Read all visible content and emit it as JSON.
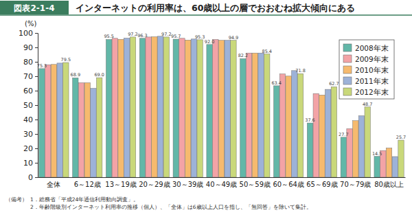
{
  "chart_data": {
    "type": "bar",
    "figure_label": "図表2-1-4",
    "title": "インターネットの利用率は、60歳以上の層でおおむね拡大傾向にある",
    "y_label": "(%)",
    "categories": [
      "全体",
      "6～12歳",
      "13～19歳",
      "20～29歳",
      "30～39歳",
      "40～49歳",
      "50～59歳",
      "60～64歳",
      "65～69歳",
      "70～79歳",
      "80歳以上"
    ],
    "series": [
      {
        "name": "2008年末",
        "color": "#62b7a8",
        "data_labels": true,
        "values": [
          75.3,
          68.9,
          95.5,
          96.3,
          95.7,
          92.0,
          82.2,
          63.4,
          37.6,
          27.7,
          14.5
        ],
        "value_labels": [
          "75.3",
          "68.9",
          "95.5",
          "96.3",
          "95.7",
          "92.0",
          "82.2",
          "63.4",
          "37.6",
          "27.7",
          "14.5"
        ]
      },
      {
        "name": "2009年末",
        "color": "#f3a3a6",
        "values": [
          78.0,
          65.5,
          96.3,
          97.2,
          96.3,
          95.5,
          86.1,
          71.6,
          58.0,
          33.7,
          18.5
        ]
      },
      {
        "name": "2010年末",
        "color": "#f6ba6e",
        "values": [
          78.2,
          65.5,
          95.6,
          97.4,
          95.1,
          94.9,
          86.1,
          70.1,
          57.0,
          39.2,
          20.3
        ]
      },
      {
        "name": "2011年末",
        "color": "#9db2d8",
        "values": [
          79.1,
          61.6,
          96.4,
          97.7,
          95.8,
          94.9,
          86.1,
          73.9,
          60.9,
          42.6,
          14.3
        ]
      },
      {
        "name": "2012年末",
        "color": "#c9d87a",
        "data_labels": true,
        "values": [
          79.5,
          69.0,
          97.2,
          97.2,
          95.3,
          94.9,
          85.4,
          71.8,
          62.7,
          48.7,
          25.7
        ],
        "value_labels": [
          "79.5",
          "69.0",
          "97.2",
          "97.2",
          "95.3",
          "94.9",
          "85.4",
          "71.8",
          "62.7",
          "48.7",
          "25.7"
        ]
      }
    ],
    "ylim": [
      0,
      100
    ],
    "yticks": [
      0,
      10,
      20,
      30,
      40,
      50,
      60,
      70,
      80,
      90,
      100
    ],
    "grid": false,
    "legend": "top-right",
    "notes_heading": "（備考）",
    "notes": [
      "1．総務省「平成24年通信利用動向調査」。",
      "2．年齢階級別インターネット利用率の推移（個人）、「全体」は6歳以上人口を指し、「無回答」を除いて集計。"
    ]
  }
}
